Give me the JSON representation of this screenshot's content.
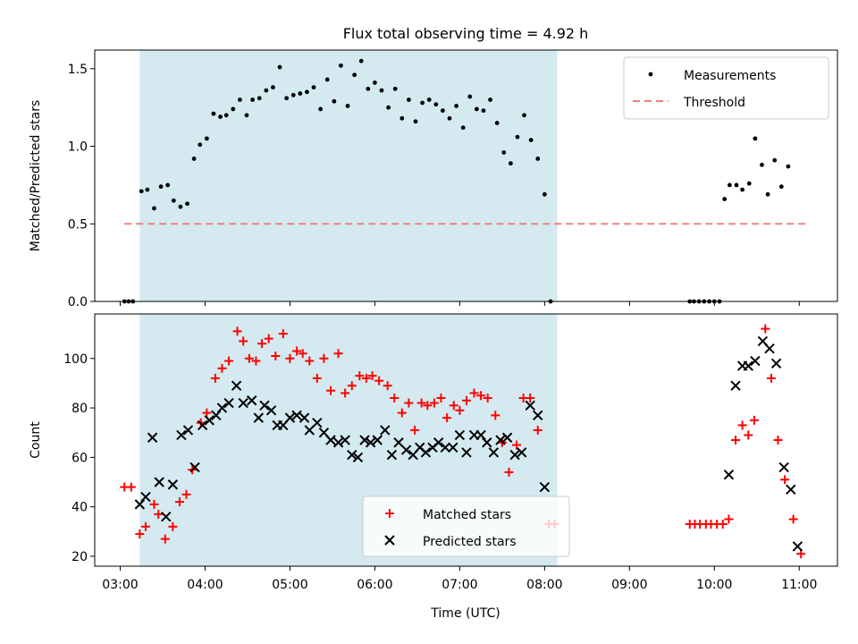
{
  "chart_data": [
    {
      "type": "scatter",
      "title": "Flux total observing time = 4.92 h",
      "xlabel": "",
      "ylabel": "Matched/Predicted stars",
      "ylim": [
        0,
        1.62
      ],
      "yticks": [
        0.0,
        0.5,
        1.0,
        1.5
      ],
      "ytick_labels": [
        "0.0",
        "0.5",
        "1.0",
        "1.5"
      ],
      "x_units": "hours UTC",
      "xlim": [
        2.7,
        11.45
      ],
      "shaded_interval": {
        "start": 3.23,
        "end": 8.15,
        "color": "#d4eaf0"
      },
      "legend_position": "top-right",
      "series": [
        {
          "name": "Measurements",
          "style": "dot",
          "color": "#000000",
          "points": [
            [
              3.05,
              0
            ],
            [
              3.1,
              0
            ],
            [
              3.15,
              0
            ],
            [
              3.25,
              0.71
            ],
            [
              3.32,
              0.72
            ],
            [
              3.4,
              0.6
            ],
            [
              3.48,
              0.74
            ],
            [
              3.56,
              0.75
            ],
            [
              3.63,
              0.65
            ],
            [
              3.71,
              0.61
            ],
            [
              3.79,
              0.63
            ],
            [
              3.87,
              0.92
            ],
            [
              3.94,
              1.01
            ],
            [
              4.02,
              1.05
            ],
            [
              4.1,
              1.21
            ],
            [
              4.18,
              1.19
            ],
            [
              4.25,
              1.2
            ],
            [
              4.33,
              1.24
            ],
            [
              4.41,
              1.3
            ],
            [
              4.49,
              1.2
            ],
            [
              4.56,
              1.3
            ],
            [
              4.64,
              1.31
            ],
            [
              4.72,
              1.36
            ],
            [
              4.8,
              1.38
            ],
            [
              4.88,
              1.51
            ],
            [
              4.96,
              1.31
            ],
            [
              5.04,
              1.33
            ],
            [
              5.12,
              1.34
            ],
            [
              5.2,
              1.35
            ],
            [
              5.28,
              1.38
            ],
            [
              5.36,
              1.24
            ],
            [
              5.44,
              1.43
            ],
            [
              5.52,
              1.29
            ],
            [
              5.6,
              1.52
            ],
            [
              5.68,
              1.26
            ],
            [
              5.76,
              1.46
            ],
            [
              5.84,
              1.55
            ],
            [
              5.92,
              1.37
            ],
            [
              6.0,
              1.41
            ],
            [
              6.08,
              1.36
            ],
            [
              6.16,
              1.25
            ],
            [
              6.24,
              1.37
            ],
            [
              6.32,
              1.18
            ],
            [
              6.4,
              1.3
            ],
            [
              6.48,
              1.16
            ],
            [
              6.56,
              1.28
            ],
            [
              6.64,
              1.3
            ],
            [
              6.72,
              1.27
            ],
            [
              6.8,
              1.23
            ],
            [
              6.88,
              1.18
            ],
            [
              6.96,
              1.26
            ],
            [
              7.04,
              1.12
            ],
            [
              7.12,
              1.32
            ],
            [
              7.2,
              1.24
            ],
            [
              7.28,
              1.23
            ],
            [
              7.36,
              1.3
            ],
            [
              7.44,
              1.15
            ],
            [
              7.52,
              0.96
            ],
            [
              7.6,
              0.89
            ],
            [
              7.68,
              1.06
            ],
            [
              7.76,
              1.2
            ],
            [
              7.84,
              1.04
            ],
            [
              7.92,
              0.92
            ],
            [
              8.0,
              0.69
            ],
            [
              8.07,
              0
            ],
            [
              9.71,
              0
            ],
            [
              9.76,
              0
            ],
            [
              9.82,
              0
            ],
            [
              9.88,
              0
            ],
            [
              9.94,
              0
            ],
            [
              10.0,
              0
            ],
            [
              10.06,
              0
            ],
            [
              10.12,
              0.66
            ],
            [
              10.18,
              0.75
            ],
            [
              10.26,
              0.75
            ],
            [
              10.33,
              0.72
            ],
            [
              10.41,
              0.76
            ],
            [
              10.48,
              1.05
            ],
            [
              10.56,
              0.88
            ],
            [
              10.63,
              0.69
            ],
            [
              10.71,
              0.91
            ],
            [
              10.79,
              0.74
            ],
            [
              10.87,
              0.87
            ]
          ]
        },
        {
          "name": "Threshold",
          "style": "dashed-line",
          "color": "#f08080",
          "points": [
            [
              3.05,
              0.5
            ],
            [
              11.07,
              0.5
            ]
          ]
        }
      ]
    },
    {
      "type": "scatter",
      "title": "",
      "xlabel": "Time (UTC)",
      "ylabel": "Count",
      "ylim": [
        16,
        118
      ],
      "yticks": [
        20,
        40,
        60,
        80,
        100
      ],
      "ytick_labels": [
        "20",
        "40",
        "60",
        "80",
        "100"
      ],
      "xlim": [
        2.7,
        11.45
      ],
      "xticks": [
        3,
        4,
        5,
        6,
        7,
        8,
        9,
        10,
        11
      ],
      "xtick_labels": [
        "03:00",
        "04:00",
        "05:00",
        "06:00",
        "07:00",
        "08:00",
        "09:00",
        "10:00",
        "11:00"
      ],
      "shaded_interval": {
        "start": 3.23,
        "end": 8.15,
        "color": "#d4eaf0"
      },
      "legend_position": "bottom-center",
      "series": [
        {
          "name": "Matched stars",
          "style": "plus",
          "color": "#ff0000",
          "points": [
            [
              3.05,
              48
            ],
            [
              3.13,
              48
            ],
            [
              3.23,
              29
            ],
            [
              3.3,
              32
            ],
            [
              3.4,
              41
            ],
            [
              3.45,
              37
            ],
            [
              3.53,
              27
            ],
            [
              3.62,
              32
            ],
            [
              3.7,
              42
            ],
            [
              3.78,
              45
            ],
            [
              3.85,
              55
            ],
            [
              3.95,
              74
            ],
            [
              4.02,
              78
            ],
            [
              4.12,
              92
            ],
            [
              4.2,
              96
            ],
            [
              4.28,
              99
            ],
            [
              4.38,
              111
            ],
            [
              4.45,
              107
            ],
            [
              4.52,
              100
            ],
            [
              4.6,
              99
            ],
            [
              4.67,
              106
            ],
            [
              4.75,
              108
            ],
            [
              4.83,
              101
            ],
            [
              4.92,
              110
            ],
            [
              5.0,
              100
            ],
            [
              5.08,
              103
            ],
            [
              5.15,
              102
            ],
            [
              5.23,
              99
            ],
            [
              5.32,
              92
            ],
            [
              5.4,
              100
            ],
            [
              5.48,
              87
            ],
            [
              5.57,
              102
            ],
            [
              5.65,
              86
            ],
            [
              5.73,
              89
            ],
            [
              5.82,
              93
            ],
            [
              5.9,
              92
            ],
            [
              5.97,
              93
            ],
            [
              6.05,
              91
            ],
            [
              6.15,
              89
            ],
            [
              6.23,
              84
            ],
            [
              6.32,
              78
            ],
            [
              6.4,
              82
            ],
            [
              6.47,
              71
            ],
            [
              6.55,
              82
            ],
            [
              6.62,
              81
            ],
            [
              6.7,
              82
            ],
            [
              6.78,
              84
            ],
            [
              6.85,
              76
            ],
            [
              6.93,
              81
            ],
            [
              7.0,
              79
            ],
            [
              7.08,
              83
            ],
            [
              7.17,
              86
            ],
            [
              7.25,
              85
            ],
            [
              7.33,
              84
            ],
            [
              7.42,
              77
            ],
            [
              7.5,
              66
            ],
            [
              7.58,
              54
            ],
            [
              7.67,
              65
            ],
            [
              7.75,
              84
            ],
            [
              7.83,
              84
            ],
            [
              7.92,
              71
            ],
            [
              8.05,
              33
            ],
            [
              8.12,
              33
            ],
            [
              9.71,
              33
            ],
            [
              9.77,
              33
            ],
            [
              9.83,
              33
            ],
            [
              9.9,
              33
            ],
            [
              9.96,
              33
            ],
            [
              10.03,
              33
            ],
            [
              10.1,
              33
            ],
            [
              10.17,
              35
            ],
            [
              10.25,
              67
            ],
            [
              10.33,
              73
            ],
            [
              10.4,
              69
            ],
            [
              10.47,
              75
            ],
            [
              10.6,
              112
            ],
            [
              10.67,
              92
            ],
            [
              10.75,
              67
            ],
            [
              10.83,
              51
            ],
            [
              10.93,
              35
            ],
            [
              11.02,
              21
            ]
          ]
        },
        {
          "name": "Predicted stars",
          "style": "x",
          "color": "#000000",
          "points": [
            [
              3.23,
              41
            ],
            [
              3.3,
              44
            ],
            [
              3.38,
              68
            ],
            [
              3.46,
              50
            ],
            [
              3.54,
              36
            ],
            [
              3.62,
              49
            ],
            [
              3.72,
              69
            ],
            [
              3.8,
              71
            ],
            [
              3.88,
              56
            ],
            [
              3.97,
              73
            ],
            [
              4.05,
              75
            ],
            [
              4.13,
              77
            ],
            [
              4.2,
              80
            ],
            [
              4.28,
              82
            ],
            [
              4.37,
              89
            ],
            [
              4.45,
              82
            ],
            [
              4.55,
              83
            ],
            [
              4.63,
              76
            ],
            [
              4.7,
              81
            ],
            [
              4.78,
              79
            ],
            [
              4.85,
              73
            ],
            [
              4.92,
              73
            ],
            [
              5.0,
              76
            ],
            [
              5.08,
              77
            ],
            [
              5.17,
              76
            ],
            [
              5.23,
              71
            ],
            [
              5.32,
              74
            ],
            [
              5.4,
              70
            ],
            [
              5.48,
              67
            ],
            [
              5.57,
              66
            ],
            [
              5.65,
              67
            ],
            [
              5.73,
              61
            ],
            [
              5.8,
              60
            ],
            [
              5.88,
              67
            ],
            [
              5.95,
              66
            ],
            [
              6.03,
              67
            ],
            [
              6.12,
              71
            ],
            [
              6.2,
              61
            ],
            [
              6.28,
              66
            ],
            [
              6.37,
              63
            ],
            [
              6.45,
              61
            ],
            [
              6.53,
              64
            ],
            [
              6.6,
              62
            ],
            [
              6.68,
              64
            ],
            [
              6.75,
              66
            ],
            [
              6.83,
              64
            ],
            [
              6.92,
              64
            ],
            [
              7.0,
              69
            ],
            [
              7.08,
              62
            ],
            [
              7.17,
              69
            ],
            [
              7.25,
              69
            ],
            [
              7.32,
              66
            ],
            [
              7.4,
              62
            ],
            [
              7.48,
              67
            ],
            [
              7.56,
              68
            ],
            [
              7.65,
              61
            ],
            [
              7.73,
              62
            ],
            [
              7.83,
              81
            ],
            [
              7.92,
              77
            ],
            [
              8.0,
              48
            ],
            [
              10.17,
              53
            ],
            [
              10.25,
              89
            ],
            [
              10.33,
              97
            ],
            [
              10.4,
              97
            ],
            [
              10.48,
              99
            ],
            [
              10.57,
              107
            ],
            [
              10.65,
              104
            ],
            [
              10.73,
              98
            ],
            [
              10.82,
              56
            ],
            [
              10.9,
              47
            ],
            [
              10.98,
              24
            ]
          ]
        }
      ]
    }
  ]
}
